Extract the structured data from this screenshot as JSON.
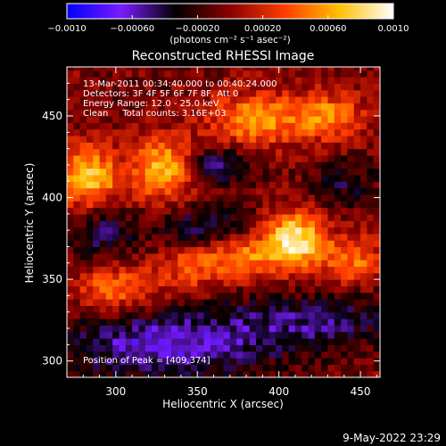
{
  "chart_data": {
    "type": "heatmap",
    "title": "Reconstructed RHESSI Image",
    "xlabel": "Heliocentric X (arcsec)",
    "ylabel": "Heliocentric Y (arcsec)",
    "xlim": [
      270,
      462
    ],
    "ylim": [
      290,
      480
    ],
    "x_ticks": [
      300,
      350,
      400,
      450
    ],
    "y_ticks": [
      300,
      350,
      400,
      450
    ],
    "colorbar": {
      "range": [
        -0.001,
        0.001
      ],
      "ticks": [
        {
          "value": -0.001,
          "label": "−0.0010"
        },
        {
          "value": -0.0006,
          "label": "−0.00060"
        },
        {
          "value": -0.0002,
          "label": "−0.00020"
        },
        {
          "value": 0.0002,
          "label": "0.00020"
        },
        {
          "value": 0.0006,
          "label": "0.00060"
        },
        {
          "value": 0.001,
          "label": "0.0010"
        }
      ],
      "unit_label": "(photons cm⁻² s⁻¹ asec⁻²)",
      "stops": [
        "#0000ff",
        "#7a1cff",
        "#000000",
        "#8a0000",
        "#ff3c00",
        "#ffc000",
        "#ffffff"
      ]
    },
    "annotations": [
      "13-Mar-2011 00:34:40.000 to 00:40:24.000",
      "Detectors: 3F 4F 5F 6F 7F 8F, Att 0",
      "Energy Range: 12.0 - 25.0 keV",
      "Clean     Total counts: 3.16E+03"
    ],
    "peak_label": "Position of Peak = [409,374]",
    "peak": [
      409,
      374
    ],
    "sources": [
      {
        "x": 283,
        "y": 412,
        "amp": 0.00075,
        "sx": 14,
        "sy": 14
      },
      {
        "x": 330,
        "y": 418,
        "amp": 0.0008,
        "sx": 13,
        "sy": 13
      },
      {
        "x": 385,
        "y": 448,
        "amp": 0.0006,
        "sx": 20,
        "sy": 12
      },
      {
        "x": 430,
        "y": 450,
        "amp": 0.00055,
        "sx": 16,
        "sy": 10
      },
      {
        "x": 409,
        "y": 374,
        "amp": 0.001,
        "sx": 13,
        "sy": 12
      },
      {
        "x": 375,
        "y": 365,
        "amp": 0.0006,
        "sx": 14,
        "sy": 10
      },
      {
        "x": 445,
        "y": 362,
        "amp": 0.0005,
        "sx": 13,
        "sy": 10
      },
      {
        "x": 300,
        "y": 345,
        "amp": 0.0005,
        "sx": 18,
        "sy": 10
      },
      {
        "x": 345,
        "y": 360,
        "amp": 0.00045,
        "sx": 12,
        "sy": 12
      },
      {
        "x": 360,
        "y": 420,
        "amp": -0.00045,
        "sx": 16,
        "sy": 8
      },
      {
        "x": 355,
        "y": 380,
        "amp": -0.0005,
        "sx": 20,
        "sy": 10
      },
      {
        "x": 330,
        "y": 310,
        "amp": -0.0006,
        "sx": 45,
        "sy": 14
      },
      {
        "x": 290,
        "y": 380,
        "amp": -0.0004,
        "sx": 14,
        "sy": 12
      },
      {
        "x": 420,
        "y": 325,
        "amp": -0.0004,
        "sx": 40,
        "sy": 12
      },
      {
        "x": 440,
        "y": 410,
        "amp": -0.0003,
        "sx": 14,
        "sy": 10
      }
    ]
  },
  "footer_date": "9-May-2022 23:29"
}
